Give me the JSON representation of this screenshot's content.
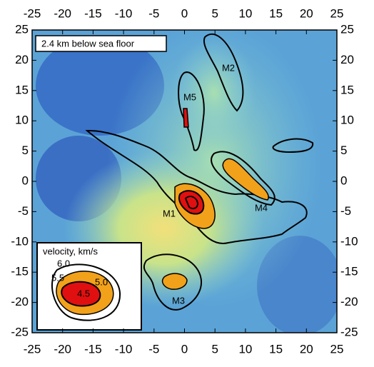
{
  "chart_data": {
    "type": "contour",
    "title": "2.4 km below sea floor",
    "xlim": [
      -25,
      25
    ],
    "ylim": [
      -25,
      25
    ],
    "xticks": [
      -25,
      -20,
      -15,
      -10,
      -5,
      0,
      5,
      10,
      15,
      20,
      25
    ],
    "yticks": [
      -25,
      -20,
      -15,
      -10,
      -5,
      0,
      5,
      10,
      15,
      20,
      25
    ],
    "annotations": [
      "M1",
      "M2",
      "M3",
      "M4",
      "M5"
    ],
    "legend": {
      "title": "velocity, km/s",
      "levels": [
        {
          "value": 6,
          "label": "6.0"
        },
        {
          "value": 5.5,
          "label": "5.5"
        },
        {
          "value": 5,
          "label": "5.0"
        },
        {
          "value": 4.5,
          "label": "4.5"
        }
      ]
    }
  }
}
